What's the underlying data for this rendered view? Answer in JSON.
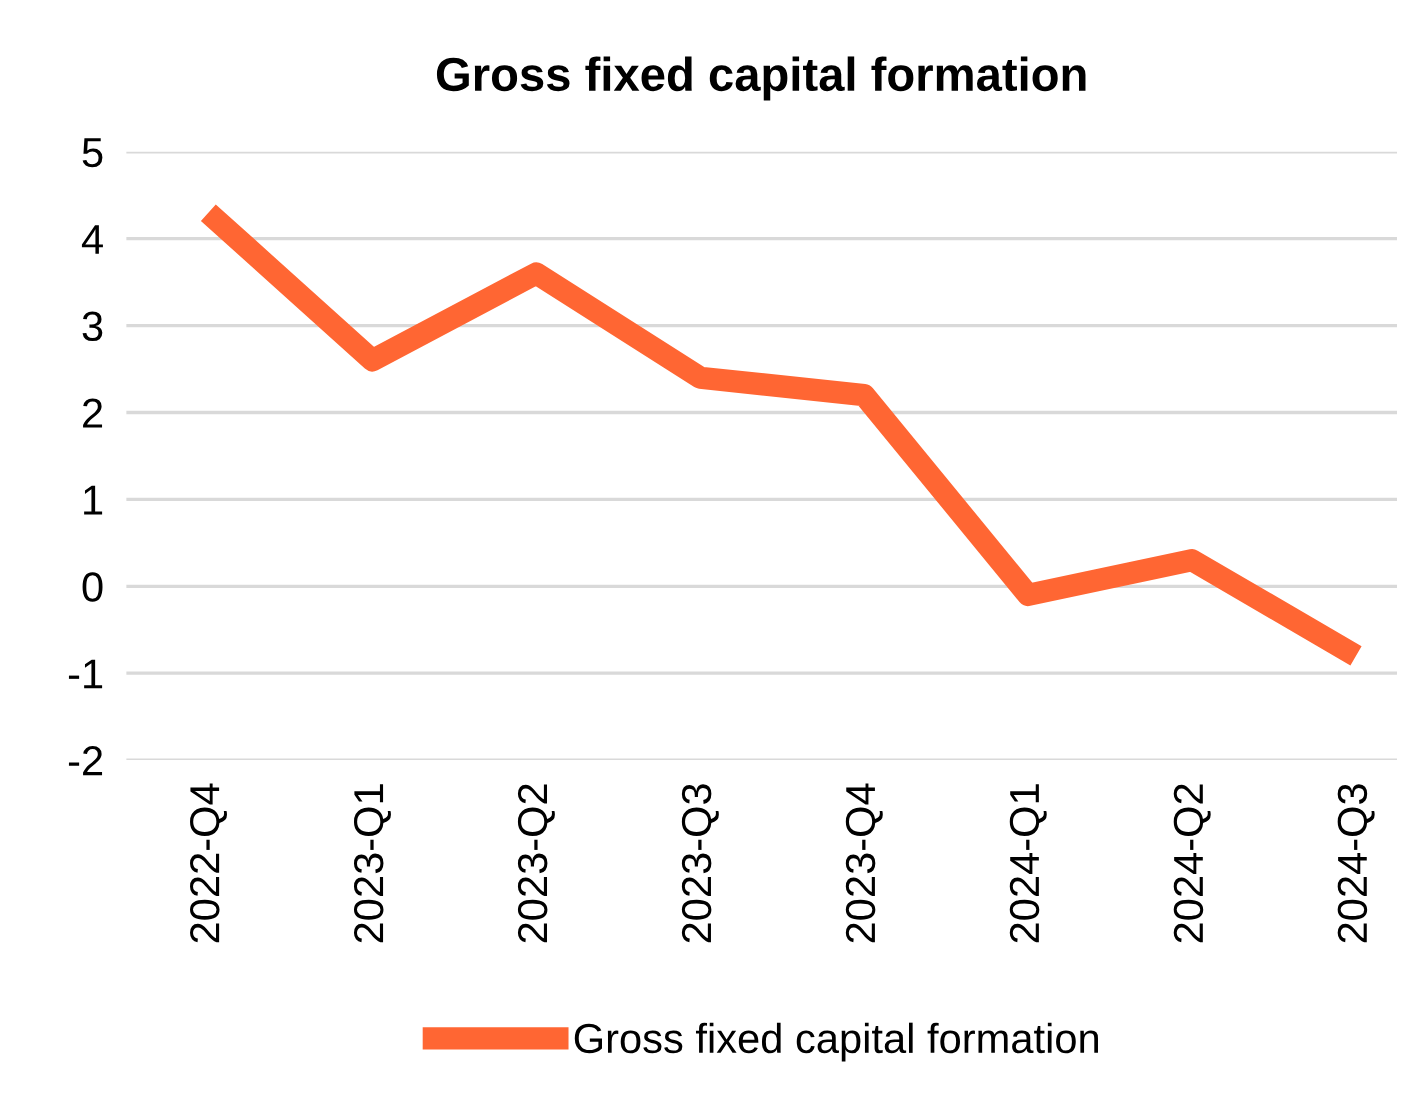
{
  "chart_data": {
    "type": "line",
    "title": "Gross fixed capital formation",
    "categories": [
      "2022-Q4",
      "2023-Q1",
      "2023-Q2",
      "2023-Q3",
      "2023-Q4",
      "2024-Q1",
      "2024-Q2",
      "2024-Q3"
    ],
    "series": [
      {
        "name": "Gross fixed capital formation",
        "color": "#ff6633",
        "values": [
          4.3,
          2.6,
          3.6,
          2.4,
          2.2,
          -0.1,
          0.3,
          -0.8
        ]
      }
    ],
    "ylim": [
      -2,
      5
    ],
    "yticks": [
      -2,
      -1,
      0,
      1,
      2,
      3,
      4,
      5
    ],
    "grid": "y",
    "legend": "bottom",
    "marker": "none",
    "line_style": "solid"
  }
}
